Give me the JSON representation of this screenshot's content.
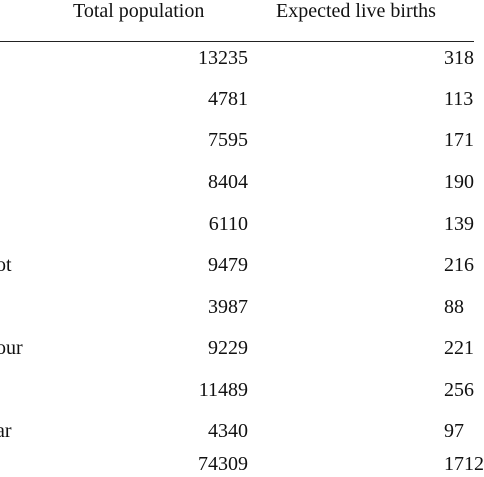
{
  "table": {
    "headers": {
      "population": "Total population",
      "births": "Expected live births"
    },
    "rows": [
      {
        "label": "",
        "population": "13235",
        "births": "318"
      },
      {
        "label": "",
        "population": "4781",
        "births": "113"
      },
      {
        "label": "",
        "population": "7595",
        "births": "171"
      },
      {
        "label": "",
        "population": "8404",
        "births": "190"
      },
      {
        "label": "",
        "population": "6110",
        "births": "139"
      },
      {
        "label": "ot",
        "population": "9479",
        "births": "216"
      },
      {
        "label": "",
        "population": "3987",
        "births": "88"
      },
      {
        "label": "our",
        "population": "9229",
        "births": "221"
      },
      {
        "label": "",
        "population": "11489",
        "births": "256"
      },
      {
        "label": "ar",
        "population": "4340",
        "births": "97"
      },
      {
        "label": "",
        "population": "74309",
        "births": "1712"
      }
    ]
  }
}
